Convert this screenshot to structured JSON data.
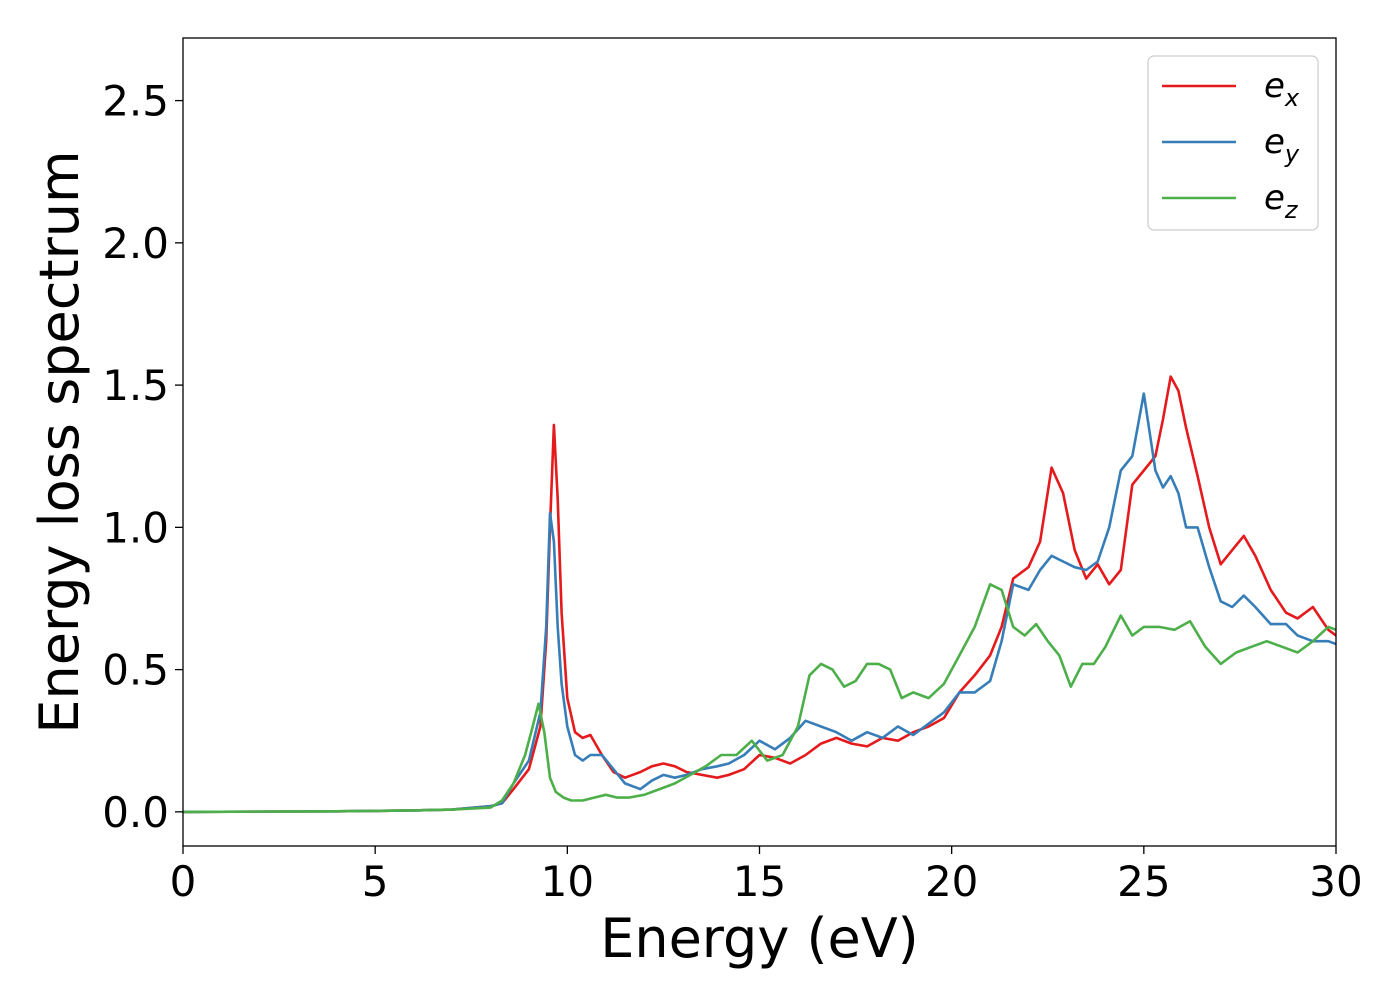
{
  "chart_data": {
    "type": "line",
    "xlabel": "Energy (eV)",
    "ylabel": "Energy loss spectrum",
    "xlim": [
      0,
      30
    ],
    "ylim": [
      -0.12,
      2.72
    ],
    "xticks": [
      0,
      5,
      10,
      15,
      20,
      25,
      30
    ],
    "xtick_labels": [
      "0",
      "5",
      "10",
      "15",
      "20",
      "25",
      "30"
    ],
    "yticks": [
      0.0,
      0.5,
      1.0,
      1.5,
      2.0,
      2.5
    ],
    "ytick_labels": [
      "0.0",
      "0.5",
      "1.0",
      "1.5",
      "2.0",
      "2.5"
    ],
    "grid": false,
    "legend_position": "top-right",
    "series": [
      {
        "name": "e",
        "subscript": "x",
        "color": "#e41a1c",
        "x": [
          0,
          4,
          6,
          7,
          8,
          8.3,
          8.6,
          9.0,
          9.3,
          9.45,
          9.55,
          9.65,
          9.75,
          9.85,
          10.0,
          10.2,
          10.4,
          10.6,
          10.9,
          11.2,
          11.5,
          11.9,
          12.2,
          12.5,
          12.8,
          13.1,
          13.5,
          13.9,
          14.2,
          14.6,
          15.0,
          15.4,
          15.8,
          16.2,
          16.6,
          17.0,
          17.4,
          17.8,
          18.2,
          18.6,
          19.0,
          19.4,
          19.8,
          20.2,
          20.6,
          21.0,
          21.3,
          21.6,
          22.0,
          22.3,
          22.6,
          22.9,
          23.2,
          23.5,
          23.8,
          24.1,
          24.4,
          24.7,
          25.0,
          25.3,
          25.5,
          25.7,
          25.9,
          26.1,
          26.4,
          26.7,
          27.0,
          27.3,
          27.6,
          27.9,
          28.3,
          28.7,
          29.0,
          29.4,
          29.8,
          30.0
        ],
        "y": [
          0,
          0.002,
          0.005,
          0.008,
          0.02,
          0.03,
          0.08,
          0.15,
          0.3,
          0.6,
          1.0,
          1.36,
          1.1,
          0.7,
          0.4,
          0.28,
          0.26,
          0.27,
          0.2,
          0.14,
          0.12,
          0.14,
          0.16,
          0.17,
          0.16,
          0.14,
          0.13,
          0.12,
          0.13,
          0.15,
          0.2,
          0.19,
          0.17,
          0.2,
          0.24,
          0.26,
          0.24,
          0.23,
          0.26,
          0.25,
          0.28,
          0.3,
          0.33,
          0.42,
          0.48,
          0.55,
          0.65,
          0.82,
          0.86,
          0.95,
          1.21,
          1.12,
          0.92,
          0.82,
          0.87,
          0.8,
          0.85,
          1.15,
          1.2,
          1.25,
          1.38,
          1.53,
          1.48,
          1.35,
          1.18,
          1.0,
          0.87,
          0.92,
          0.97,
          0.9,
          0.78,
          0.7,
          0.68,
          0.72,
          0.64,
          0.62
        ]
      },
      {
        "name": "e",
        "subscript": "y",
        "color": "#377eb8",
        "x": [
          0,
          4,
          6,
          7,
          8,
          8.3,
          8.6,
          9.0,
          9.3,
          9.45,
          9.55,
          9.65,
          9.75,
          9.85,
          10.0,
          10.2,
          10.4,
          10.6,
          10.9,
          11.2,
          11.5,
          11.9,
          12.2,
          12.5,
          12.8,
          13.1,
          13.5,
          13.9,
          14.2,
          14.6,
          15.0,
          15.4,
          15.8,
          16.2,
          16.6,
          17.0,
          17.4,
          17.8,
          18.2,
          18.6,
          19.0,
          19.4,
          19.8,
          20.2,
          20.6,
          21.0,
          21.3,
          21.6,
          22.0,
          22.3,
          22.6,
          22.9,
          23.2,
          23.5,
          23.8,
          24.1,
          24.4,
          24.7,
          25.0,
          25.3,
          25.5,
          25.7,
          25.9,
          26.1,
          26.4,
          26.7,
          27.0,
          27.3,
          27.6,
          27.9,
          28.3,
          28.7,
          29.0,
          29.4,
          29.8,
          30.0
        ],
        "y": [
          0,
          0.002,
          0.005,
          0.008,
          0.02,
          0.03,
          0.1,
          0.18,
          0.35,
          0.65,
          1.05,
          0.95,
          0.65,
          0.45,
          0.3,
          0.2,
          0.18,
          0.2,
          0.2,
          0.15,
          0.1,
          0.08,
          0.11,
          0.13,
          0.12,
          0.13,
          0.15,
          0.16,
          0.17,
          0.2,
          0.25,
          0.22,
          0.26,
          0.32,
          0.3,
          0.28,
          0.25,
          0.28,
          0.26,
          0.3,
          0.27,
          0.31,
          0.35,
          0.42,
          0.42,
          0.46,
          0.6,
          0.8,
          0.78,
          0.85,
          0.9,
          0.88,
          0.86,
          0.85,
          0.88,
          1.0,
          1.2,
          1.25,
          1.47,
          1.2,
          1.14,
          1.18,
          1.12,
          1.0,
          1.0,
          0.86,
          0.74,
          0.72,
          0.76,
          0.72,
          0.66,
          0.66,
          0.62,
          0.6,
          0.6,
          0.59
        ]
      },
      {
        "name": "e",
        "subscript": "z",
        "color": "#4daf4a",
        "x": [
          0,
          4,
          6,
          7,
          8,
          8.3,
          8.6,
          8.9,
          9.1,
          9.25,
          9.4,
          9.55,
          9.7,
          9.9,
          10.1,
          10.4,
          10.7,
          11.0,
          11.3,
          11.6,
          12.0,
          12.4,
          12.8,
          13.2,
          13.6,
          14.0,
          14.4,
          14.8,
          15.2,
          15.6,
          16.0,
          16.3,
          16.6,
          16.9,
          17.2,
          17.5,
          17.8,
          18.1,
          18.4,
          18.7,
          19.0,
          19.4,
          19.8,
          20.2,
          20.6,
          21.0,
          21.3,
          21.6,
          21.9,
          22.2,
          22.5,
          22.8,
          23.1,
          23.4,
          23.7,
          24.0,
          24.4,
          24.7,
          25.0,
          25.4,
          25.8,
          26.2,
          26.6,
          27.0,
          27.4,
          27.8,
          28.2,
          28.6,
          29.0,
          29.4,
          29.8,
          30.0
        ],
        "y": [
          0,
          0.002,
          0.005,
          0.008,
          0.015,
          0.04,
          0.1,
          0.2,
          0.3,
          0.38,
          0.28,
          0.12,
          0.07,
          0.05,
          0.04,
          0.04,
          0.05,
          0.06,
          0.05,
          0.05,
          0.06,
          0.08,
          0.1,
          0.13,
          0.16,
          0.2,
          0.2,
          0.25,
          0.18,
          0.2,
          0.3,
          0.48,
          0.52,
          0.5,
          0.44,
          0.46,
          0.52,
          0.52,
          0.5,
          0.4,
          0.42,
          0.4,
          0.45,
          0.55,
          0.65,
          0.8,
          0.78,
          0.65,
          0.62,
          0.66,
          0.6,
          0.55,
          0.44,
          0.52,
          0.52,
          0.58,
          0.69,
          0.62,
          0.65,
          0.65,
          0.64,
          0.67,
          0.58,
          0.52,
          0.56,
          0.58,
          0.6,
          0.58,
          0.56,
          0.6,
          0.65,
          0.64
        ]
      }
    ]
  }
}
